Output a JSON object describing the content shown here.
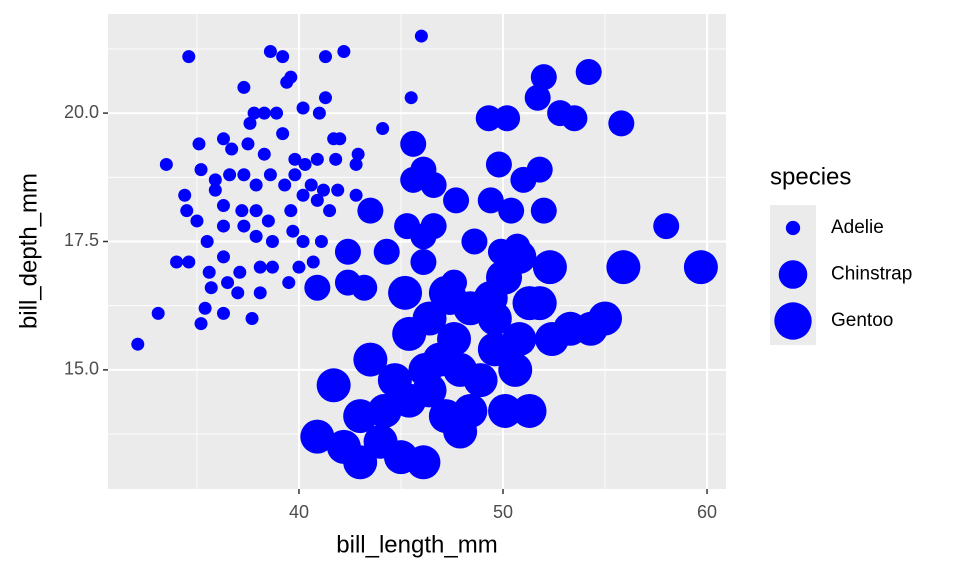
{
  "chart_data": {
    "type": "scatter",
    "x_label": "bill_length_mm",
    "y_label": "bill_depth_mm",
    "legend_title": "species",
    "xlim": [
      30.64,
      60.93
    ],
    "ylim": [
      12.68,
      21.93
    ],
    "xticks": [
      40,
      50,
      60
    ],
    "yticks": [
      {
        "value": 15,
        "label": "15.0"
      },
      17.5,
      {
        "value": 20,
        "label": "20.0"
      }
    ],
    "x_minor_ticks": [
      35,
      45,
      55
    ],
    "y_minor_ticks": [
      13.75,
      16.25,
      18.75,
      21.25
    ],
    "grid": true,
    "legend_position": "right",
    "series": [
      {
        "name": "Adelie",
        "color": "#0000ff",
        "x": [
          34.6,
          38.6,
          39.2,
          41.3,
          42.2,
          46.0,
          37.3,
          39.4,
          39.6,
          38.3,
          37.8,
          37.6,
          38.9,
          40.2,
          41.0,
          41.3,
          45.5,
          44.1,
          35.1,
          33.5,
          36.3,
          36.7,
          37.5,
          38.3,
          39.2,
          39.8,
          40.3,
          40.9,
          41.7,
          42.0,
          41.8,
          42.9,
          35.2,
          35.9,
          36.6,
          37.3,
          37.9,
          38.6,
          39.3,
          39.8,
          40.6,
          41.2,
          41.9,
          42.8,
          34.4,
          34.5,
          35.0,
          35.9,
          36.3,
          37.2,
          37.9,
          38.5,
          39.6,
          40.2,
          40.9,
          41.5,
          42.8,
          36.3,
          37.3,
          37.9,
          38.7,
          39.7,
          40.2,
          41.1,
          35.5,
          34.0,
          34.6,
          35.6,
          36.3,
          37.1,
          38.1,
          38.7,
          40.0,
          40.7,
          35.7,
          36.5,
          37.0,
          38.1,
          39.5,
          33.1,
          35.4,
          36.3,
          37.7,
          35.2,
          32.1
        ],
        "y": [
          21.1,
          21.2,
          21.1,
          21.1,
          21.2,
          21.5,
          20.5,
          20.6,
          20.7,
          20.0,
          20.0,
          19.8,
          20.0,
          20.1,
          20.0,
          20.3,
          20.3,
          19.7,
          19.4,
          19.0,
          19.5,
          19.3,
          19.4,
          19.2,
          19.6,
          19.1,
          19.0,
          19.1,
          19.5,
          19.5,
          19.1,
          19.2,
          18.9,
          18.7,
          18.8,
          18.8,
          18.6,
          18.8,
          18.6,
          18.8,
          18.6,
          18.5,
          18.5,
          19.0,
          18.4,
          18.1,
          17.9,
          18.5,
          18.2,
          18.1,
          18.1,
          17.9,
          18.1,
          18.4,
          18.3,
          18.1,
          18.4,
          17.8,
          17.8,
          17.6,
          17.5,
          17.7,
          17.5,
          17.5,
          17.5,
          17.1,
          17.1,
          16.9,
          17.2,
          16.9,
          17.0,
          17.0,
          17.0,
          17.1,
          16.6,
          16.7,
          16.5,
          16.5,
          16.7,
          16.1,
          16.2,
          16.1,
          16.0,
          15.9,
          15.5
        ]
      },
      {
        "name": "Chinstrap",
        "color": "#0000ff",
        "x": [
          40.9,
          42.4,
          42.4,
          43.2,
          43.5,
          44.3,
          45.6,
          45.6,
          46.1,
          46.6,
          47.7,
          48.6,
          49.8,
          49.9,
          50.7,
          51.0,
          52.0,
          51.8,
          52.0,
          54.2,
          55.8,
          58.0,
          51.7,
          52.8,
          53.5,
          49.3,
          50.2,
          49.4,
          50.4,
          47.6,
          46.1,
          45.3,
          46.6,
          46.1
        ],
        "y": [
          16.6,
          17.3,
          16.7,
          16.6,
          18.1,
          17.3,
          19.4,
          18.7,
          18.9,
          18.6,
          18.3,
          17.5,
          19.0,
          17.3,
          17.4,
          18.7,
          18.1,
          18.9,
          20.7,
          20.8,
          19.8,
          17.8,
          20.3,
          20.0,
          19.9,
          19.9,
          19.9,
          18.3,
          18.1,
          16.7,
          17.6,
          17.8,
          17.8,
          17.1
        ]
      },
      {
        "name": "Gentoo",
        "color": "#0000ff",
        "x": [
          59.7,
          55.9,
          55.0,
          54.3,
          53.3,
          52.4,
          51.3,
          51.3,
          50.1,
          50.6,
          49.6,
          48.4,
          47.9,
          47.2,
          46.1,
          45.0,
          44.0,
          43.0,
          42.2,
          40.9,
          41.7,
          43.5,
          43.0,
          44.2,
          45.4,
          46.4,
          45.4,
          46.4,
          47.4,
          48.4,
          49.6,
          50.1,
          49.4,
          46.9,
          47.9,
          48.9,
          45.2,
          47.2,
          51.8,
          52.3,
          50.8,
          50.0,
          46.2,
          44.7,
          47.6,
          50.8
        ],
        "y": [
          17.0,
          17.0,
          16.0,
          15.8,
          15.8,
          15.6,
          16.3,
          14.2,
          14.2,
          15.0,
          15.4,
          14.2,
          13.8,
          14.1,
          13.2,
          13.3,
          13.6,
          13.2,
          13.5,
          13.7,
          14.7,
          15.2,
          14.1,
          14.2,
          14.4,
          14.6,
          15.7,
          16.0,
          16.4,
          16.2,
          16.0,
          16.8,
          16.4,
          15.2,
          15.0,
          14.8,
          16.5,
          16.5,
          16.3,
          17.0,
          17.2,
          16.8,
          15.0,
          14.8,
          15.6,
          15.6
        ]
      }
    ]
  }
}
